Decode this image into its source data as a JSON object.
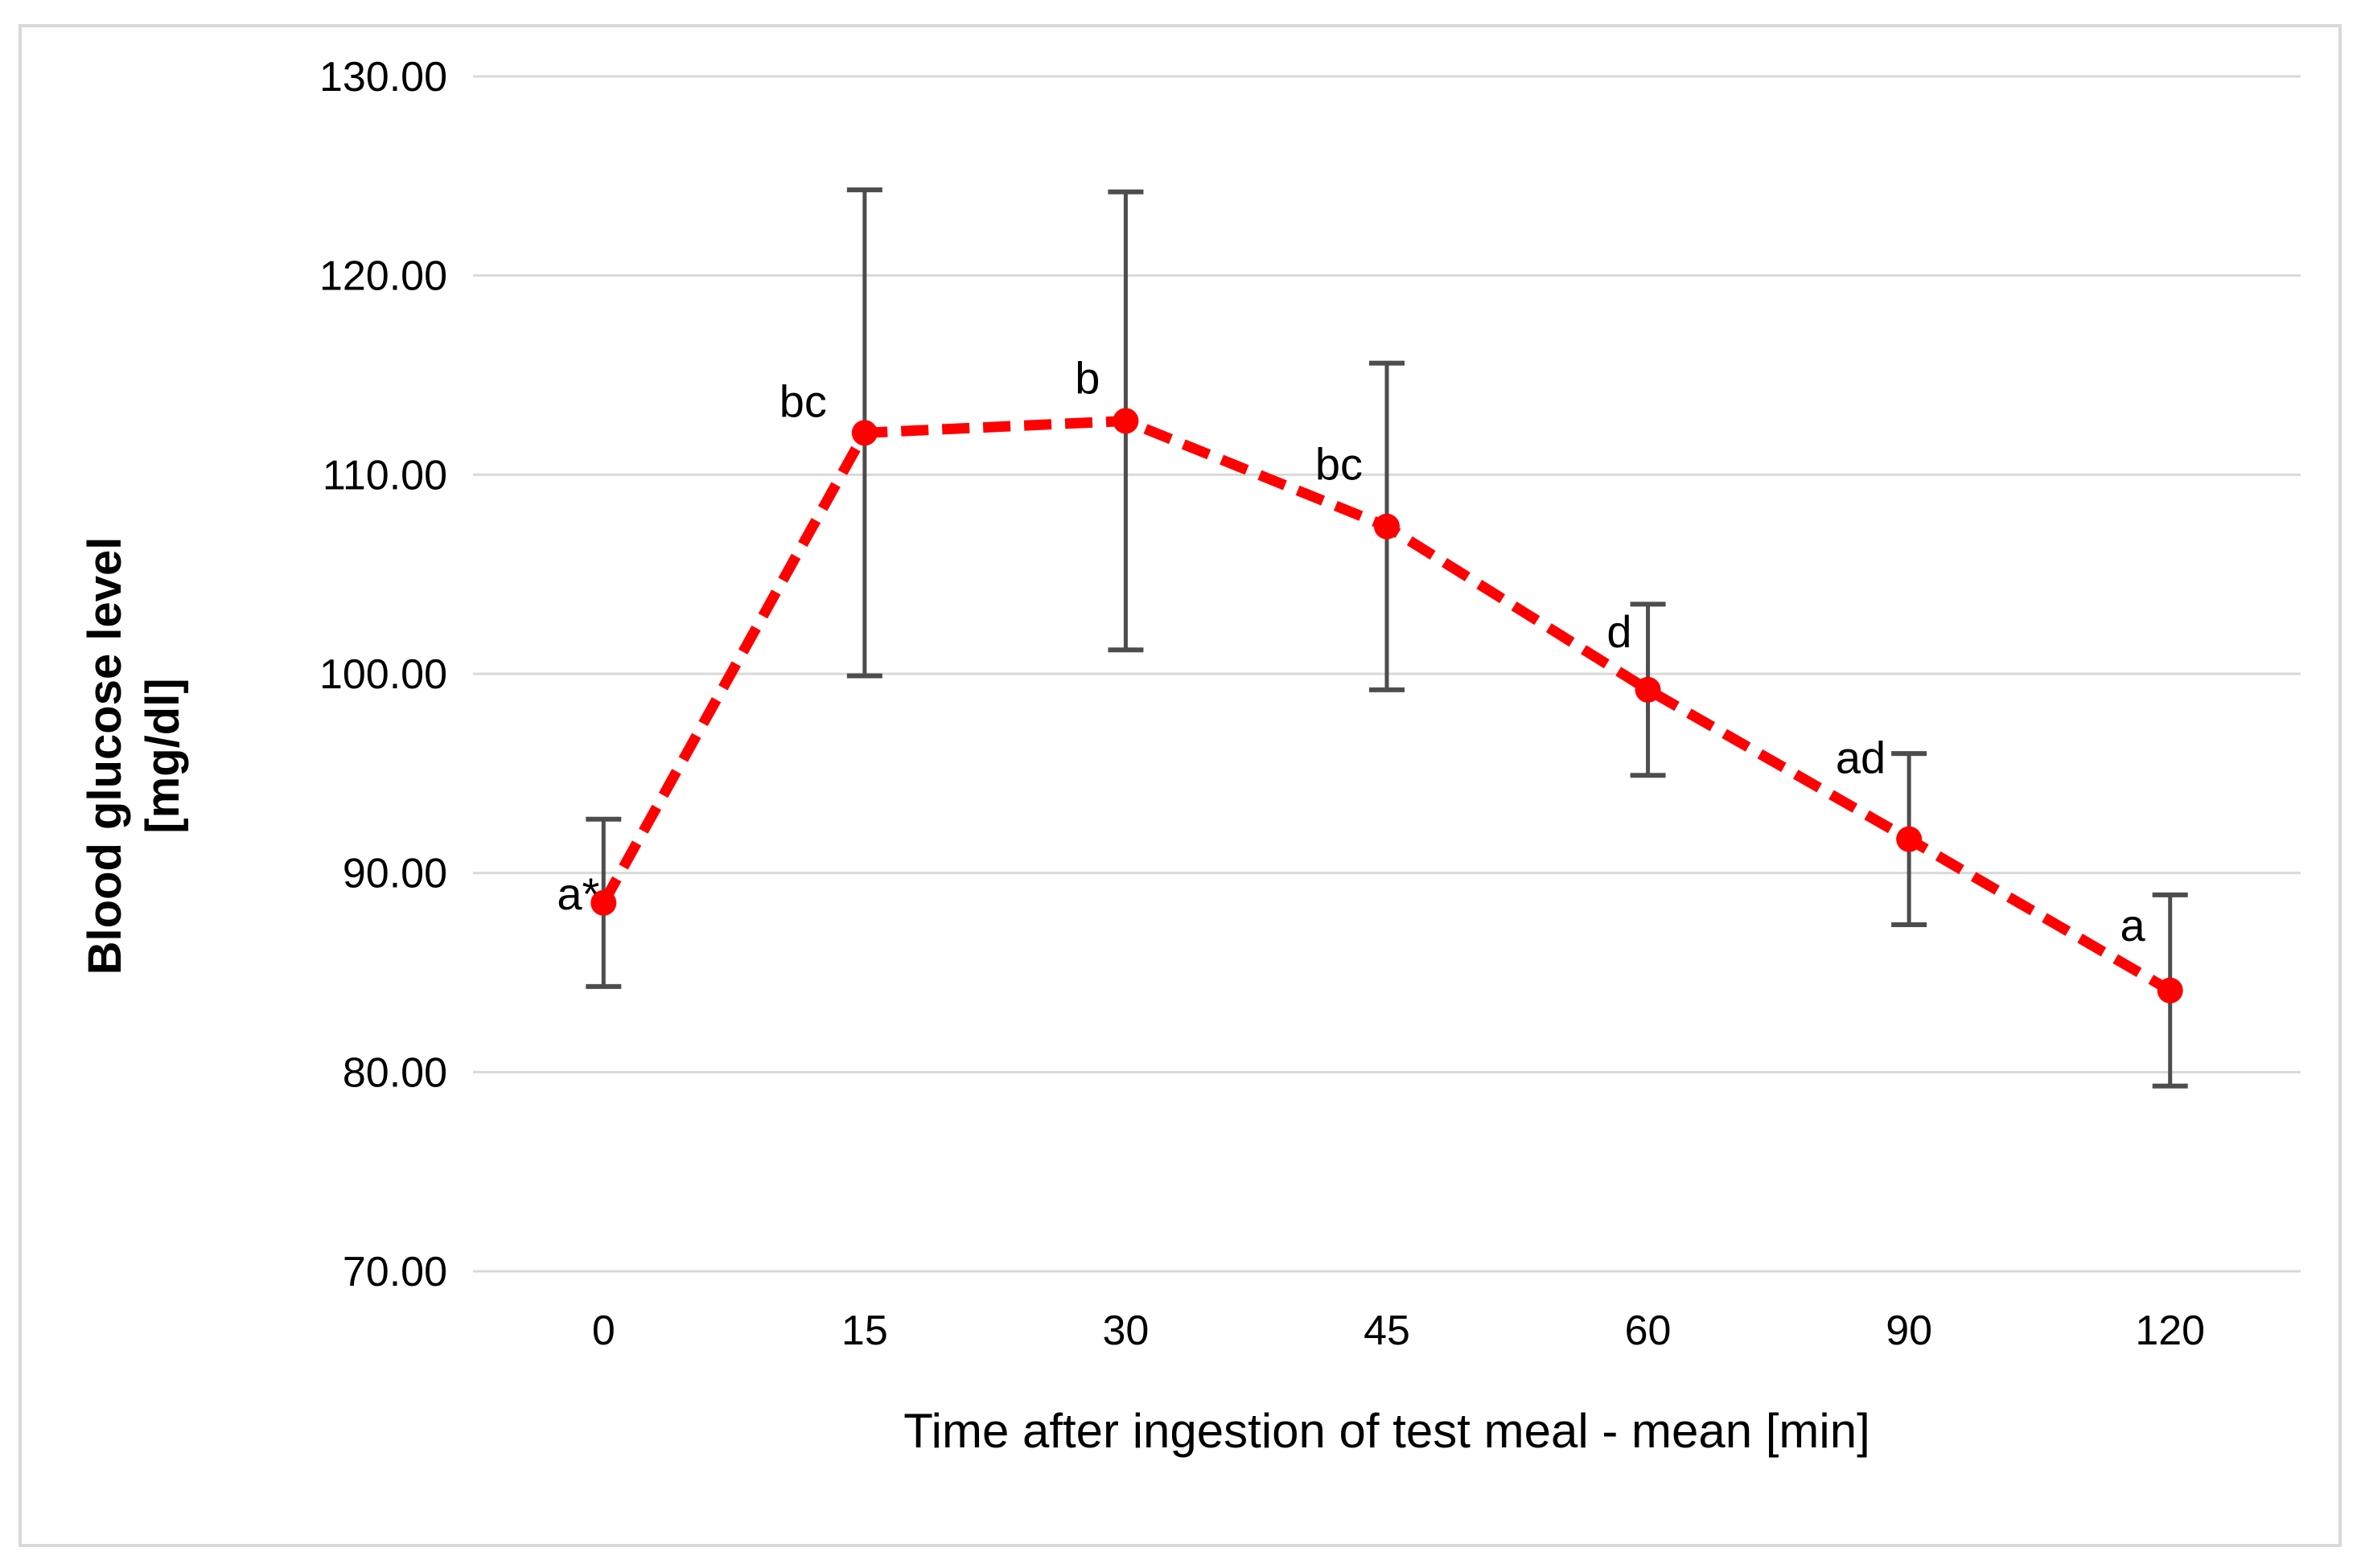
{
  "chart_data": {
    "type": "line",
    "xlabel": "Time after ingestion of test meal - mean [min]",
    "ylabel": "Blood glucose level [mg/dl]",
    "ylabel_lines": [
      "Blood glucose level",
      "[mg/dl]"
    ],
    "categories": [
      "0",
      "15",
      "30",
      "45",
      "60",
      "90",
      "120"
    ],
    "series": [
      {
        "name": "blood-glucose-mean",
        "values": [
          88.5,
          112.1,
          112.7,
          107.4,
          99.2,
          91.7,
          84.1
        ],
        "error": [
          4.2,
          12.2,
          11.5,
          8.2,
          4.3,
          4.3,
          4.8
        ],
        "error_low": [
          84.3,
          99.9,
          101.2,
          99.2,
          94.9,
          87.4,
          79.3
        ],
        "error_high": [
          92.7,
          124.3,
          124.2,
          115.6,
          103.5,
          96.0,
          88.9
        ],
        "point_labels": [
          "a*",
          "bc",
          "b",
          "bc",
          "d",
          "ad",
          "a"
        ],
        "line_color": "#FF0000",
        "line_style": "dashed",
        "marker": "circle"
      }
    ],
    "yticks": [
      "130.00",
      "120.00",
      "110.00",
      "100.00",
      "90.00",
      "80.00",
      "70.00"
    ],
    "ylim": [
      70,
      130
    ],
    "ytick_step": 10,
    "grid": "horizontal-only",
    "legend_position": "none",
    "colors": {
      "gridline": "#D9D9D9",
      "frame_border": "#D9D9D9",
      "error_bar": "#4D4D4D",
      "text": "#000000",
      "background": "#FFFFFF"
    }
  }
}
